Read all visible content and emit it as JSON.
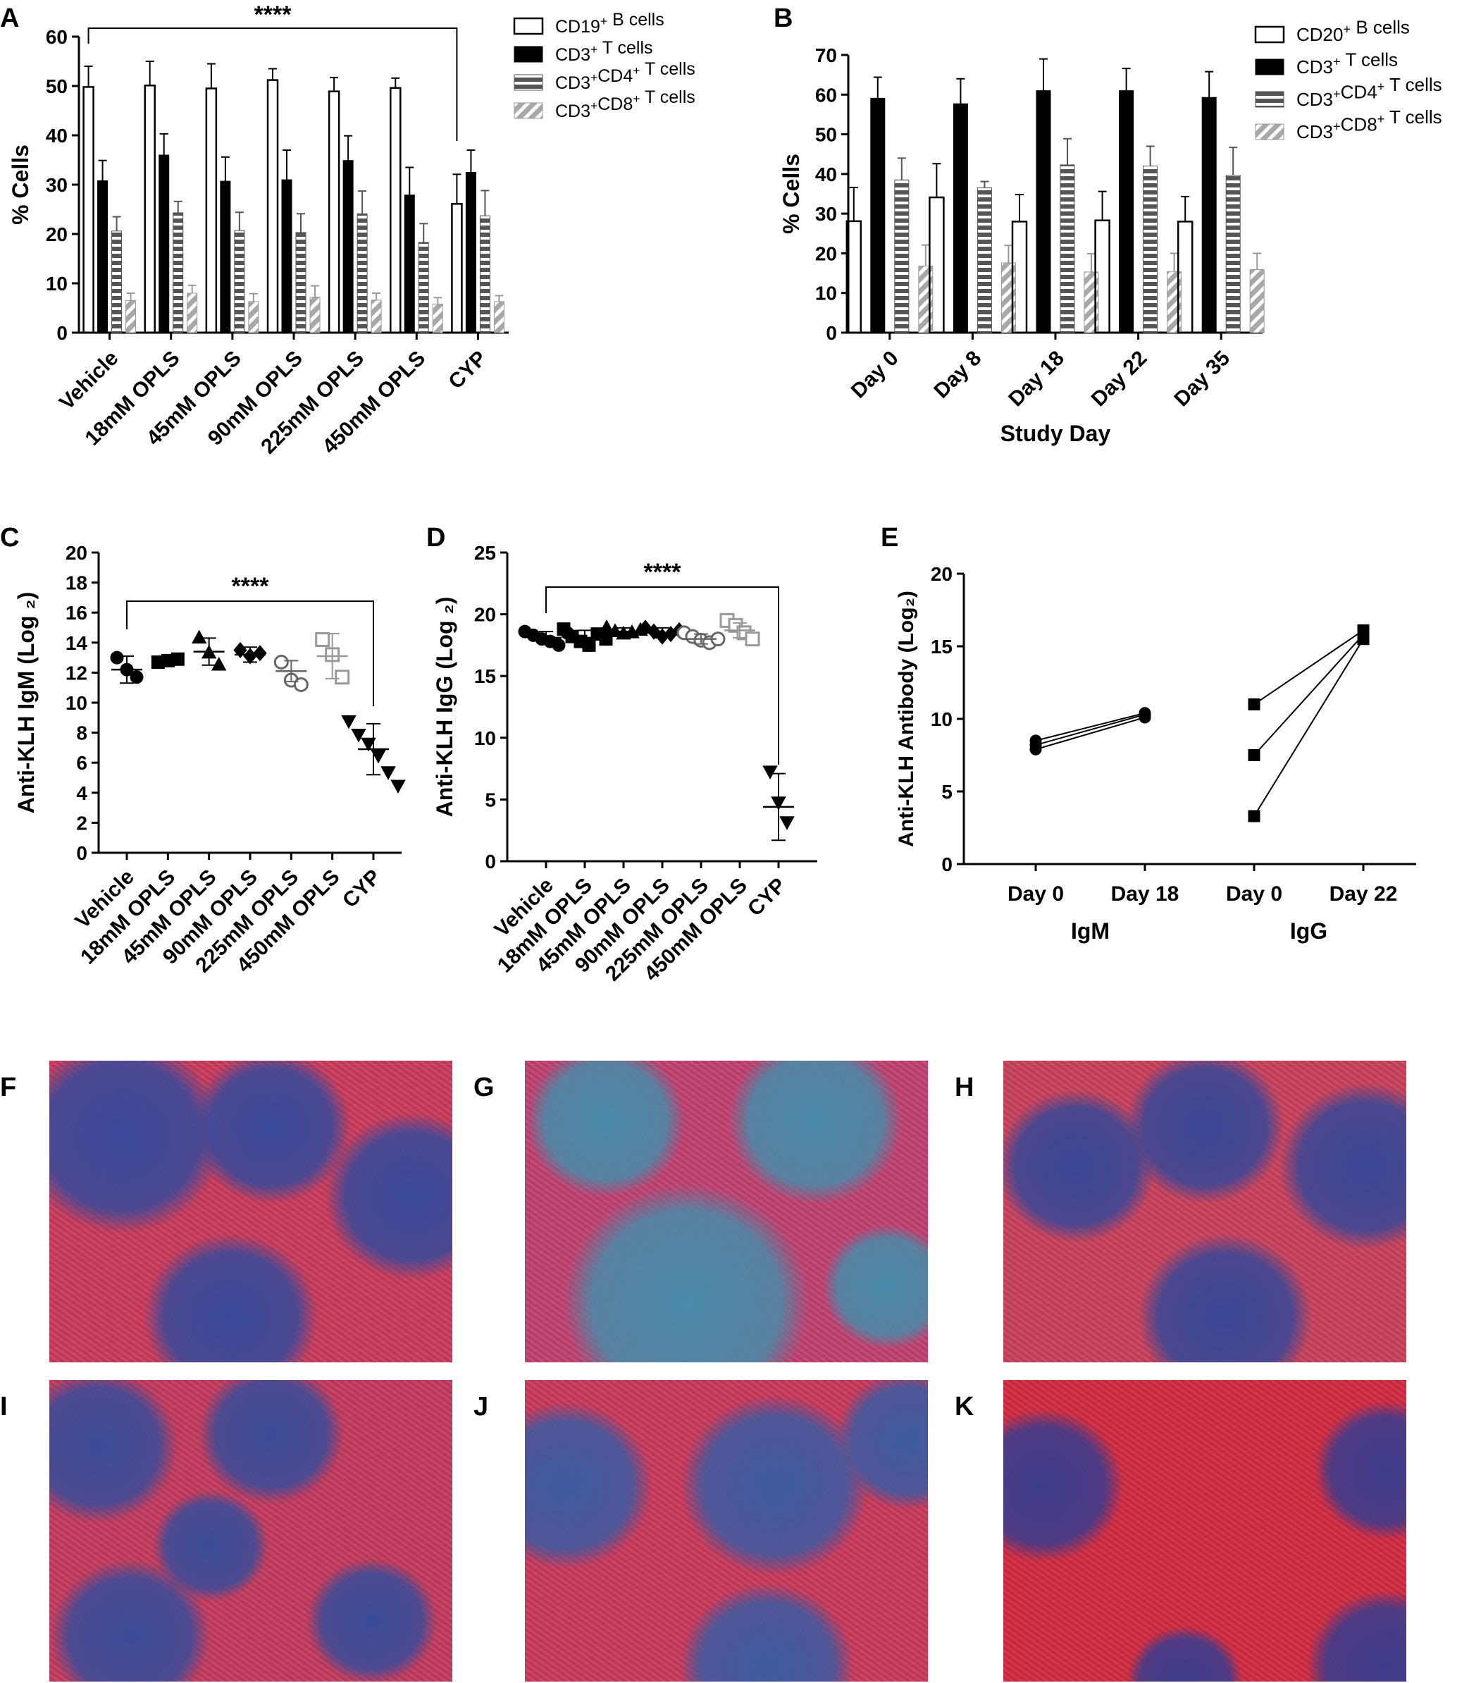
{
  "panel_letters": [
    "A",
    "B",
    "C",
    "D",
    "E",
    "F",
    "G",
    "H",
    "I",
    "J",
    "K"
  ],
  "chart_data": [
    {
      "panel": "A",
      "type": "bar",
      "xlabel": "",
      "ylabel": "% Cells",
      "ylim": [
        0,
        60
      ],
      "yticks": [
        0,
        10,
        20,
        30,
        40,
        50,
        60
      ],
      "categories": [
        "Vehicle",
        "18mM OPLS",
        "45mM OPLS",
        "90mM OPLS",
        "225mM OPLS",
        "450mM OPLS",
        "CYP"
      ],
      "series": [
        {
          "name": "CD19⁺ B cells",
          "style": "open",
          "values": [
            49.8,
            50.1,
            49.5,
            51.2,
            48.9,
            49.6,
            26.1
          ],
          "errors": [
            4.2,
            4.9,
            5.0,
            2.3,
            2.8,
            2.0,
            6.0
          ]
        },
        {
          "name": "CD3⁺ T cells",
          "style": "black",
          "values": [
            30.8,
            36.0,
            30.7,
            31.0,
            34.9,
            27.9,
            32.5
          ],
          "errors": [
            4.1,
            4.3,
            4.9,
            6.0,
            5.0,
            5.6,
            4.5
          ]
        },
        {
          "name": "CD3⁺CD4⁺ T cells",
          "style": "hstripe",
          "values": [
            20.6,
            24.3,
            20.7,
            20.3,
            24.1,
            18.3,
            23.7
          ],
          "errors": [
            2.9,
            2.3,
            3.7,
            3.8,
            4.6,
            3.8,
            5.1
          ]
        },
        {
          "name": "CD3⁺CD8⁺ T cells",
          "style": "dstripe",
          "values": [
            6.5,
            8.0,
            6.3,
            7.2,
            6.6,
            5.8,
            6.3
          ],
          "errors": [
            1.5,
            1.6,
            1.6,
            2.3,
            1.4,
            1.3,
            1.2
          ]
        }
      ],
      "significance": {
        "label": "****",
        "from": 0,
        "to": 6
      }
    },
    {
      "panel": "B",
      "type": "bar",
      "xlabel": "Study Day",
      "ylabel": "% Cells",
      "ylim": [
        0,
        70
      ],
      "yticks": [
        0,
        10,
        20,
        30,
        40,
        50,
        60,
        70
      ],
      "categories": [
        "Day 0",
        "Day 8",
        "Day 18",
        "Day 22",
        "Day 35"
      ],
      "series": [
        {
          "name": "CD20⁺ B cells",
          "style": "open",
          "values": [
            28.1,
            34.1,
            28.0,
            28.3,
            28.0
          ],
          "errors": [
            8.5,
            8.5,
            6.8,
            7.3,
            6.3
          ]
        },
        {
          "name": "CD3⁺ T cells",
          "style": "black",
          "values": [
            59.1,
            57.7,
            61.0,
            61.0,
            59.3
          ],
          "errors": [
            5.3,
            6.3,
            8.0,
            5.6,
            6.5
          ]
        },
        {
          "name": "CD3⁺CD4⁺ T cells",
          "style": "hstripe",
          "values": [
            38.5,
            36.5,
            42.3,
            42.0,
            39.7
          ],
          "errors": [
            5.5,
            1.6,
            6.6,
            5.0,
            7.0
          ]
        },
        {
          "name": "CD3⁺CD8⁺ T cells",
          "style": "dstripe",
          "values": [
            16.8,
            17.6,
            15.3,
            15.4,
            15.9
          ],
          "errors": [
            5.3,
            4.4,
            4.6,
            4.6,
            4.1
          ]
        }
      ]
    },
    {
      "panel": "C",
      "type": "scatter",
      "xlabel": "",
      "ylabel": "Anti-KLH IgM (Log ₂)",
      "ylim": [
        0,
        20
      ],
      "yticks": [
        0,
        2,
        4,
        6,
        8,
        10,
        12,
        14,
        16,
        18,
        20
      ],
      "categories": [
        "Vehicle",
        "18mM OPLS",
        "45mM OPLS",
        "90mM OPLS",
        "225mM OPLS",
        "450mM OPLS",
        "CYP"
      ],
      "groups": [
        {
          "marker": "circle",
          "color": "#000000",
          "filled": true,
          "points": [
            13.0,
            12.2,
            11.7
          ],
          "mean": 12.2,
          "sd": 0.9
        },
        {
          "marker": "square",
          "color": "#000000",
          "filled": true,
          "points": [
            12.7,
            12.8,
            12.9
          ],
          "mean": 12.8,
          "sd": 0.1
        },
        {
          "marker": "triangle",
          "color": "#000000",
          "filled": true,
          "points": [
            14.3,
            13.3,
            12.5
          ],
          "mean": 13.4,
          "sd": 0.9
        },
        {
          "marker": "diamond",
          "color": "#000000",
          "filled": true,
          "points": [
            13.5,
            13.1,
            13.3
          ],
          "mean": 13.2,
          "sd": 0.5
        },
        {
          "marker": "circle",
          "color": "#666666",
          "filled": false,
          "points": [
            12.7,
            11.5,
            11.2
          ],
          "mean": 12.1,
          "sd": 0.7
        },
        {
          "marker": "square",
          "color": "#999999",
          "filled": false,
          "points": [
            14.2,
            13.2,
            11.7
          ],
          "mean": 13.1,
          "sd": 1.5
        },
        {
          "marker": "invtriangle",
          "color": "#000000",
          "filled": true,
          "points": [
            8.8,
            7.9,
            7.3,
            6.5,
            5.4,
            4.5
          ],
          "mean": 6.9,
          "sd": 1.7
        }
      ],
      "significance": {
        "label": "****",
        "from": 0,
        "to": 6
      }
    },
    {
      "panel": "D",
      "type": "scatter",
      "xlabel": "",
      "ylabel": "Anti-KLH IgG (Log ₂)",
      "ylim": [
        0,
        25
      ],
      "yticks": [
        0,
        5,
        10,
        15,
        20,
        25
      ],
      "categories": [
        "Vehicle",
        "18mM OPLS",
        "45mM OPLS",
        "90mM OPLS",
        "225mM OPLS",
        "450mM OPLS",
        "CYP"
      ],
      "groups": [
        {
          "marker": "circle",
          "color": "#000000",
          "filled": true,
          "points": [
            18.6,
            18.3,
            18.0,
            17.8,
            17.5,
            18.5
          ],
          "mean": 18.1,
          "sd": 0.5
        },
        {
          "marker": "square",
          "color": "#000000",
          "filled": true,
          "points": [
            18.8,
            18.2,
            17.8,
            17.5,
            18.4,
            18.0
          ],
          "mean": 18.1,
          "sd": 0.6
        },
        {
          "marker": "triangle",
          "color": "#000000",
          "filled": true,
          "points": [
            18.9,
            18.6,
            18.4,
            18.5,
            18.7
          ],
          "mean": 18.6,
          "sd": 0.3
        },
        {
          "marker": "diamond",
          "color": "#000000",
          "filled": true,
          "points": [
            18.9,
            18.6,
            18.2,
            18.4,
            18.7
          ],
          "mean": 18.5,
          "sd": 0.4
        },
        {
          "marker": "circle",
          "color": "#666666",
          "filled": false,
          "points": [
            18.5,
            18.2,
            17.9,
            17.7,
            18.0
          ],
          "mean": 18.0,
          "sd": 0.4
        },
        {
          "marker": "square",
          "color": "#999999",
          "filled": false,
          "points": [
            19.5,
            19.1,
            18.5,
            18.0
          ],
          "mean": 18.7,
          "sd": 0.6
        },
        {
          "marker": "invtriangle",
          "color": "#000000",
          "filled": true,
          "points": [
            7.3,
            4.8,
            3.2
          ],
          "mean": 4.4,
          "sd": 2.7
        }
      ],
      "significance": {
        "label": "****",
        "from": 0,
        "to": 6
      }
    },
    {
      "panel": "E",
      "type": "line",
      "xlabel": "",
      "ylabel": "Anti-KLH Antibody (Log₂)",
      "ylim": [
        0,
        20
      ],
      "yticks": [
        0,
        5,
        10,
        15,
        20
      ],
      "categories": [
        "Day 0",
        "Day 18",
        "Day 0",
        "Day 22"
      ],
      "group_labels": [
        {
          "label": "IgM",
          "from": 0,
          "to": 1
        },
        {
          "label": "IgG",
          "from": 2,
          "to": 3
        }
      ],
      "pairs": [
        {
          "marker": "circle",
          "x": [
            0,
            1
          ],
          "values": [
            8.5,
            10.4
          ]
        },
        {
          "marker": "circle",
          "x": [
            0,
            1
          ],
          "values": [
            8.2,
            10.3
          ]
        },
        {
          "marker": "circle",
          "x": [
            0,
            1
          ],
          "values": [
            7.9,
            10.1
          ]
        },
        {
          "marker": "square",
          "x": [
            2,
            3
          ],
          "values": [
            11.0,
            16.1
          ]
        },
        {
          "marker": "square",
          "x": [
            2,
            3
          ],
          "values": [
            7.5,
            15.8
          ]
        },
        {
          "marker": "square",
          "x": [
            2,
            3
          ],
          "values": [
            3.3,
            15.5
          ]
        }
      ]
    }
  ],
  "histology_panels": [
    {
      "label": "F",
      "tone": "#3a4a9a",
      "accent": "#c83a5a"
    },
    {
      "label": "G",
      "tone": "#4a8aa8",
      "accent": "#c04070"
    },
    {
      "label": "H",
      "tone": "#3a4896",
      "accent": "#c8405a"
    },
    {
      "label": "I",
      "tone": "#3c4c98",
      "accent": "#c23a5c"
    },
    {
      "label": "J",
      "tone": "#3e5aa0",
      "accent": "#c8385a"
    },
    {
      "label": "K",
      "tone": "#3c3c8c",
      "accent": "#d02a40"
    }
  ]
}
